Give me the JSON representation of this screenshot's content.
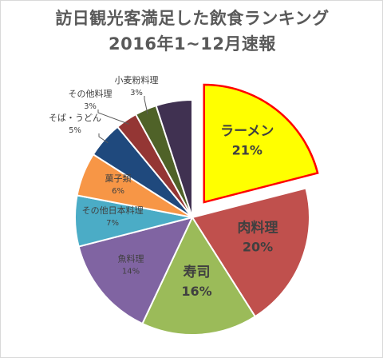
{
  "chart_data": {
    "type": "pie",
    "title": "訪日観光客満足した飲食ランキング",
    "subtitle": "2016年1~12月速報",
    "slices": [
      {
        "label": "ラーメン",
        "value": 21,
        "value_text": "21%",
        "color": "#ffff00",
        "exploded": true
      },
      {
        "label": "肉料理",
        "value": 20,
        "value_text": "20%",
        "color": "#c0504d"
      },
      {
        "label": "寿司",
        "value": 16,
        "value_text": "16%",
        "color": "#9bbb59"
      },
      {
        "label": "魚料理",
        "value": 14,
        "value_text": "14%",
        "color": "#8064a2"
      },
      {
        "label": "その他日本料理",
        "value": 7,
        "value_text": "7%",
        "color": "#4bacc6"
      },
      {
        "label": "菓子類",
        "value": 6,
        "value_text": "6%",
        "color": "#f79646"
      },
      {
        "label": "そば・うどん",
        "value": 5,
        "value_text": "5%",
        "color": "#1f497d"
      },
      {
        "label": "その他料理",
        "value": 3,
        "value_text": "3%",
        "color": "#943634"
      },
      {
        "label": "小麦粉料理",
        "value": 3,
        "value_text": "3%",
        "color": "#4f6228"
      },
      {
        "label": "",
        "value": 5,
        "value_text": "",
        "color": "#403151"
      }
    ]
  }
}
